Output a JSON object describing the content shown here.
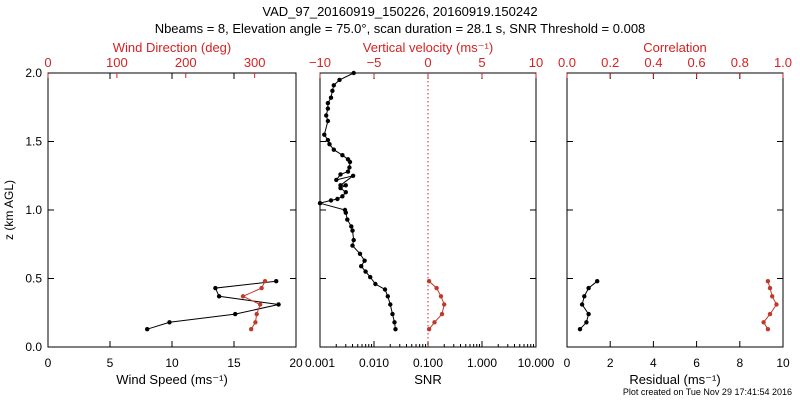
{
  "title_line1": "VAD_97_20160919_150226, 20160919.150242",
  "title_line2": "Nbeams = 8, Elevation angle = 75.0°, scan duration = 28.1 s, SNR Threshold = 0.008",
  "footer": "Plot created on Tue Nov 29 17:41:54 2016",
  "colors": {
    "black": "#000000",
    "red": "#d62222",
    "line_red": "#c0392b"
  },
  "chart_data": [
    {
      "id": "wind",
      "type": "line",
      "ylabel": "z (km AGL)",
      "ylim": [
        0,
        2
      ],
      "yticks": [
        "0.0",
        "0.5",
        "1.0",
        "1.5",
        "2.0"
      ],
      "ytick_values": [
        0,
        0.5,
        1,
        1.5,
        2
      ],
      "bottom_axis": {
        "label": "Wind Speed (ms⁻¹)",
        "xlim": [
          0,
          20
        ],
        "ticks": [
          "0",
          "5",
          "10",
          "15",
          "20"
        ],
        "tick_values": [
          0,
          5,
          10,
          15,
          20
        ]
      },
      "top_axis": {
        "label": "Wind Direction (deg)",
        "xlim": [
          0,
          360
        ],
        "ticks": [
          "0",
          "100",
          "200",
          "300"
        ],
        "tick_values": [
          0,
          100,
          200,
          300
        ]
      },
      "series": [
        {
          "axis": "bottom",
          "color": "black",
          "x": [
            8.0,
            9.8,
            15.1,
            18.6,
            13.8,
            13.5,
            18.4
          ],
          "y": [
            0.13,
            0.18,
            0.24,
            0.31,
            0.37,
            0.43,
            0.48
          ]
        },
        {
          "axis": "top",
          "color": "red",
          "x": [
            295,
            301,
            303,
            308,
            283,
            310,
            315
          ],
          "y": [
            0.13,
            0.18,
            0.24,
            0.31,
            0.37,
            0.43,
            0.48
          ]
        }
      ]
    },
    {
      "id": "snr",
      "type": "line",
      "ylim": [
        0,
        2
      ],
      "bottom_axis": {
        "label": "SNR",
        "scale": "log",
        "xlim": [
          0.001,
          10
        ],
        "ticks": [
          "0.001",
          "0.010",
          "0.100",
          "1.000",
          "10.000"
        ],
        "tick_values": [
          0.001,
          0.01,
          0.1,
          1,
          10
        ]
      },
      "top_axis": {
        "label": "Vertical velocity (ms⁻¹)",
        "xlim": [
          -10,
          10
        ],
        "ticks": [
          "−10",
          "−5",
          "0",
          "5",
          "10"
        ],
        "tick_values": [
          -10,
          -5,
          0,
          5,
          10
        ]
      },
      "reference_line": {
        "axis": "top",
        "x": 0,
        "style": "dotted",
        "color": "red"
      },
      "series": [
        {
          "axis": "bottom",
          "color": "black",
          "x": [
            0.0042,
            0.0023,
            0.0018,
            0.0017,
            0.0016,
            0.0014,
            0.0014,
            0.0013,
            0.0014,
            0.0012,
            0.0014,
            0.0015,
            0.0018,
            0.0026,
            0.0033,
            0.0036,
            0.0035,
            0.0033,
            0.0024,
            0.002,
            0.0041,
            0.0024,
            0.003,
            0.0024,
            0.003,
            0.0026,
            0.0021,
            0.0016,
            0.001,
            0.0029,
            0.003,
            0.0032,
            0.0038,
            0.004,
            0.0042,
            0.004,
            0.0055,
            0.0067,
            0.0058,
            0.007,
            0.0085,
            0.0106,
            0.016,
            0.018,
            0.02,
            0.022,
            0.024,
            0.025
          ],
          "y": [
            2.0,
            1.95,
            1.91,
            1.87,
            1.82,
            1.78,
            1.74,
            1.69,
            1.65,
            1.55,
            1.51,
            1.48,
            1.44,
            1.4,
            1.37,
            1.35,
            1.31,
            1.28,
            1.26,
            1.22,
            1.25,
            1.18,
            1.18,
            1.16,
            1.13,
            1.1,
            1.08,
            1.07,
            1.05,
            1.0,
            0.98,
            0.93,
            0.88,
            0.85,
            0.78,
            0.74,
            0.68,
            0.63,
            0.59,
            0.55,
            0.51,
            0.46,
            0.42,
            0.37,
            0.31,
            0.24,
            0.18,
            0.13
          ]
        },
        {
          "axis": "top",
          "color": "red",
          "x": [
            0.1,
            0.6,
            1.3,
            1.5,
            1.2,
            0.8,
            0.1
          ],
          "y": [
            0.13,
            0.18,
            0.24,
            0.31,
            0.37,
            0.43,
            0.48
          ]
        }
      ]
    },
    {
      "id": "residual",
      "type": "line",
      "ylim": [
        0,
        2
      ],
      "bottom_axis": {
        "label": "Residual (ms⁻¹)",
        "xlim": [
          0,
          10
        ],
        "ticks": [
          "0",
          "2",
          "4",
          "6",
          "8",
          "10"
        ],
        "tick_values": [
          0,
          2,
          4,
          6,
          8,
          10
        ]
      },
      "top_axis": {
        "label": "Correlation",
        "xlim": [
          0,
          1
        ],
        "ticks": [
          "0.0",
          "0.2",
          "0.4",
          "0.6",
          "0.8",
          "1.0"
        ],
        "tick_values": [
          0,
          0.2,
          0.4,
          0.6,
          0.8,
          1.0
        ]
      },
      "series": [
        {
          "axis": "bottom",
          "color": "black",
          "x": [
            0.6,
            0.9,
            1.0,
            0.7,
            0.8,
            1.0,
            1.4
          ],
          "y": [
            0.13,
            0.18,
            0.24,
            0.31,
            0.37,
            0.43,
            0.48
          ]
        },
        {
          "axis": "top",
          "color": "red",
          "x": [
            0.93,
            0.91,
            0.94,
            0.97,
            0.95,
            0.94,
            0.93
          ],
          "y": [
            0.13,
            0.18,
            0.24,
            0.31,
            0.37,
            0.43,
            0.48
          ]
        }
      ]
    }
  ]
}
